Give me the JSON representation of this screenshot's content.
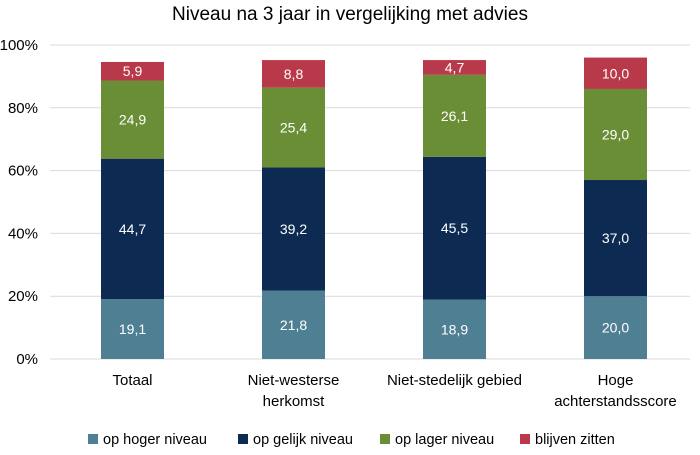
{
  "chart_data": {
    "type": "bar",
    "stacked": true,
    "normalized_percent": true,
    "title": "Niveau na 3 jaar in vergelijking met advies",
    "categories": [
      [
        "Totaal"
      ],
      [
        "Niet-westerse",
        "herkomst"
      ],
      [
        "Niet-stedelijk gebied"
      ],
      [
        "Hoge",
        "achterstandsscore"
      ]
    ],
    "series": [
      {
        "name": "op hoger niveau",
        "color": "#4f7f92",
        "values": [
          19.1,
          21.8,
          18.9,
          20.0
        ],
        "labels": [
          "19,1",
          "21,8",
          "18,9",
          "20,0"
        ]
      },
      {
        "name": "op gelijk niveau",
        "color": "#0d2b52",
        "values": [
          44.7,
          39.2,
          45.5,
          37.0
        ],
        "labels": [
          "44,7",
          "39,2",
          "45,5",
          "37,0"
        ]
      },
      {
        "name": "op lager niveau",
        "color": "#6a8e35",
        "values": [
          24.9,
          25.4,
          26.1,
          29.0
        ],
        "labels": [
          "24,9",
          "25,4",
          "26,1",
          "29,0"
        ]
      },
      {
        "name": "blijven zitten",
        "color": "#b8394a",
        "values": [
          5.9,
          8.8,
          4.7,
          10.0
        ],
        "labels": [
          "5,9",
          "8,8",
          "4,7",
          "10,0"
        ]
      }
    ],
    "ylim": [
      0,
      100
    ],
    "yticks": [
      {
        "value": 0,
        "label": "0%"
      },
      {
        "value": 20,
        "label": "20%"
      },
      {
        "value": 40,
        "label": "40%"
      },
      {
        "value": 60,
        "label": "60%"
      },
      {
        "value": 80,
        "label": "80%"
      },
      {
        "value": 100,
        "label": "100%"
      }
    ],
    "grid": true,
    "legend_position": "bottom"
  }
}
